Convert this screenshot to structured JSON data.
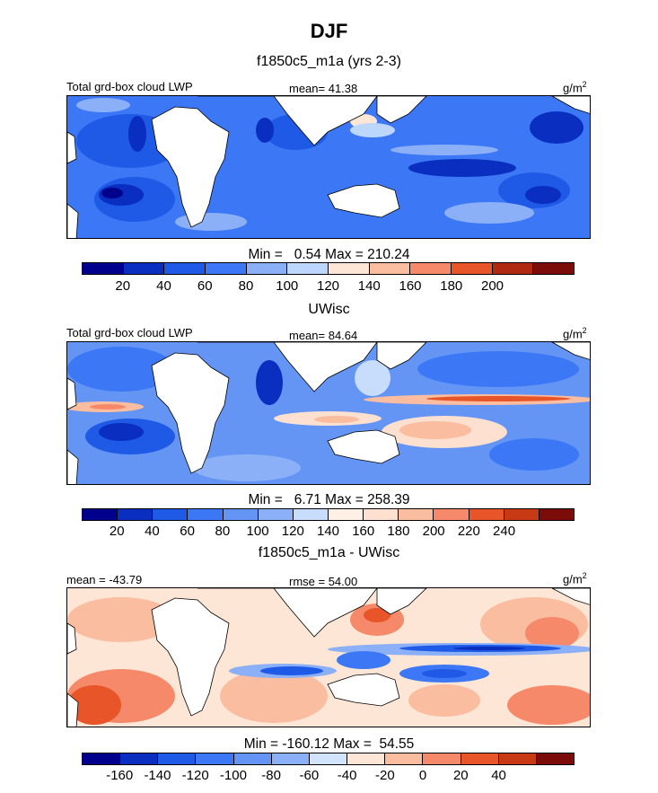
{
  "page": {
    "title": "DJF"
  },
  "units_label": "g/m",
  "units_exp": "2",
  "panels": [
    {
      "subtitle": "f1850c5_m1a (yrs 2-3)",
      "left_label": "Total grd-box cloud LWP",
      "center_label": "mean=  41.38",
      "min_max": "Min =   0.54 Max = 210.24",
      "colorbar": {
        "colors": [
          "#00008c",
          "#0a2fc0",
          "#1e5ae6",
          "#3c78f5",
          "#8cb0f8",
          "#bcd6fc",
          "#fde6d5",
          "#fbbda0",
          "#f5896a",
          "#e85528",
          "#b02810",
          "#7c0c0a"
        ],
        "ticks": [
          "20",
          "40",
          "60",
          "80",
          "100",
          "120",
          "140",
          "160",
          "180",
          "200"
        ]
      }
    },
    {
      "subtitle": "UWisc",
      "left_label": "Total grd-box cloud LWP",
      "center_label": "mean=  84.64",
      "min_max": "Min =   6.71 Max = 258.39",
      "colorbar": {
        "colors": [
          "#00008c",
          "#0a2fc0",
          "#1e5ae6",
          "#3c78f5",
          "#6495f5",
          "#8cb0f8",
          "#c8dcfc",
          "#fff0e6",
          "#fde0d0",
          "#fbbda0",
          "#f5896a",
          "#e85528",
          "#c83a14",
          "#7c0c0a"
        ],
        "ticks": [
          "20",
          "40",
          "60",
          "80",
          "100",
          "120",
          "140",
          "160",
          "180",
          "200",
          "220",
          "240"
        ]
      }
    },
    {
      "subtitle": "f1850c5_m1a - UWisc",
      "left_label": "mean = -43.79",
      "center_label": "rmse =  54.00",
      "min_max": "Min = -160.12 Max =  54.55",
      "colorbar": {
        "colors": [
          "#00008c",
          "#0a2fc0",
          "#1e5ae6",
          "#3c78f5",
          "#6495f5",
          "#8cb0f8",
          "#d2e4fc",
          "#fde6d5",
          "#fbbda0",
          "#f5896a",
          "#e85528",
          "#c83a14",
          "#7c0c0a"
        ],
        "ticks": [
          "-160",
          "-140",
          "-120",
          "-100",
          "-80",
          "-60",
          "-40",
          "-20",
          "0",
          "20",
          "40"
        ]
      }
    }
  ]
}
